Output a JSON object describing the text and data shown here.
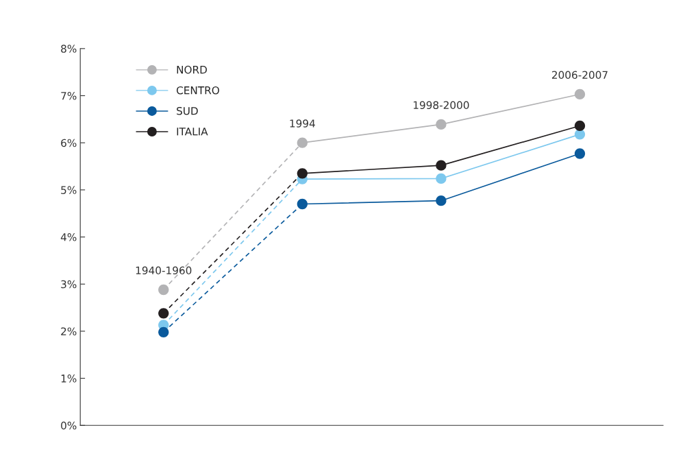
{
  "chart_data": {
    "type": "line",
    "categories": [
      "1940-1960",
      "1994",
      "1998-2000",
      "2006-2007"
    ],
    "ylim": [
      0,
      8
    ],
    "yticks": [
      {
        "value": 0,
        "label": "0%"
      },
      {
        "value": 1,
        "label": "1%"
      },
      {
        "value": 2,
        "label": "2%"
      },
      {
        "value": 3,
        "label": "3%"
      },
      {
        "value": 4,
        "label": "4%"
      },
      {
        "value": 5,
        "label": "5%"
      },
      {
        "value": 6,
        "label": "6%"
      },
      {
        "value": 7,
        "label": "7%"
      },
      {
        "value": 8,
        "label": "8%"
      }
    ],
    "legend": "top left",
    "marker": "circle",
    "line_style": [
      "dashed",
      "solid",
      "solid"
    ],
    "series": [
      {
        "name": "NORD",
        "color": "#b3b3b5",
        "values": [
          2.88,
          6.0,
          6.39,
          7.03
        ]
      },
      {
        "name": "CENTRO",
        "color": "#7dc8ee",
        "values": [
          2.13,
          5.23,
          5.24,
          6.18
        ]
      },
      {
        "name": "SUD",
        "color": "#0a5a9c",
        "values": [
          1.98,
          4.7,
          4.77,
          5.77
        ]
      },
      {
        "name": "ITALIA",
        "color": "#231f20",
        "values": [
          2.38,
          5.35,
          5.52,
          6.36
        ]
      }
    ]
  }
}
